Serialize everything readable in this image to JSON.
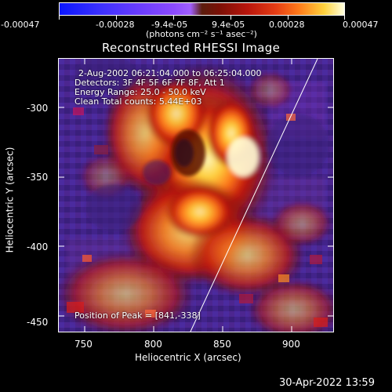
{
  "colorbar": {
    "tick_labels": [
      "-0.00047",
      "-0.00028",
      "-9.4e-05",
      "9.4e-05",
      "0.00028",
      "0.00047"
    ],
    "unit_label": "(photons cm⁻² s⁻¹ asec⁻²)"
  },
  "plot": {
    "title": "Reconstructed RHESSI Image",
    "xlabel": "Heliocentric X (arcsec)",
    "ylabel": "Heliocentric Y (arcsec)",
    "x_ticks": [
      "750",
      "800",
      "850",
      "900"
    ],
    "y_ticks": [
      "-300",
      "-350",
      "-400",
      "-450"
    ],
    "annotations": {
      "time_range": "2-Aug-2002 06:21:04.000 to 06:25:04.000",
      "detectors": "Detectors: 3F 4F 5F 6F 7F 8F, Att 1",
      "energy": "Energy Range: 25.0 - 50.0 keV",
      "clean": "Clean     Total counts: 5.44E+03",
      "peak": "Position of Peak = [841,-338]"
    }
  },
  "footer": {
    "timestamp": "30-Apr-2022 13:59"
  },
  "colors": {
    "background": "#000000",
    "text": "#ffffff",
    "limb_line": "#ffffff"
  }
}
